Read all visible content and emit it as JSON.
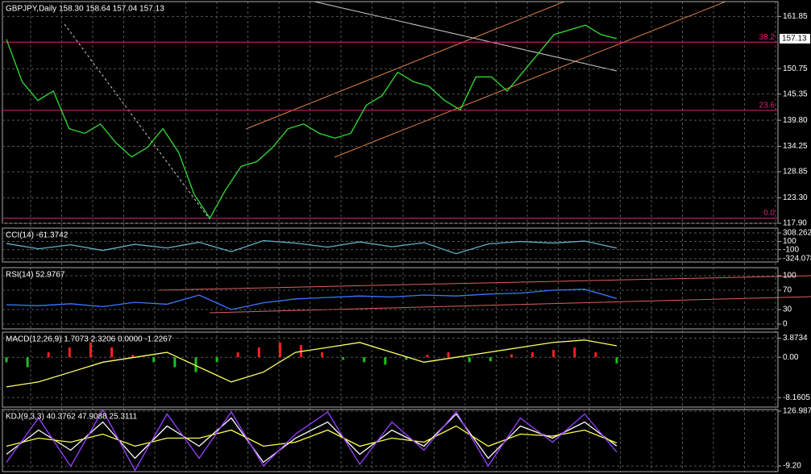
{
  "panels": [
    {
      "label": "GBPJPY,Daily  158.30 158.64 157.04 157.13",
      "ylim": [
        117.9,
        165
      ],
      "yticks": [
        161.85,
        150.75,
        145.35,
        {
          "value": 139.8,
          "label": "139.80"
        },
        134.25,
        128.85,
        {
          "value": 123.3,
          "label": "123.30"
        },
        {
          "value": 117.9,
          "label": "117.90"
        }
      ],
      "current": {
        "value": 157.13,
        "label": "157.13"
      },
      "levels": [
        {
          "value": 156.4,
          "label": "38.2"
        },
        {
          "value": 141.9,
          "label": "23.6"
        },
        {
          "value": 119.0,
          "label": "0.0"
        }
      ],
      "series": [
        {
          "kind": "line",
          "color": "#33dd33",
          "values": [
            157,
            148,
            144,
            146,
            138,
            137,
            139,
            135,
            132,
            134,
            138,
            133,
            124,
            119,
            125,
            130,
            131,
            134,
            138,
            139,
            137,
            136,
            137,
            143,
            145,
            150,
            148,
            147,
            144,
            142,
            149,
            149,
            146,
            150,
            154,
            158,
            159,
            160,
            158,
            157.13
          ]
        }
      ]
    },
    {
      "label": "CCI(14) -61.3742",
      "ylim": [
        -403,
        427
      ],
      "yticks": [
        308.2626,
        100,
        -100,
        -324.078
      ],
      "series": [
        {
          "kind": "line",
          "color": "#5fb0c8",
          "values": [
            50,
            -80,
            20,
            -120,
            30,
            -60,
            80,
            -150,
            120,
            60,
            -40,
            90,
            -30,
            70,
            -200,
            40,
            100,
            60,
            110,
            -61.3742
          ]
        }
      ]
    },
    {
      "label": "RSI(14) 52.9767",
      "ylim": [
        -10,
        116.7
      ],
      "yticks": [
        100,
        70,
        30,
        0
      ],
      "series": [
        {
          "kind": "line",
          "color": "#3a78ff",
          "values": [
            40,
            38,
            42,
            36,
            45,
            41,
            60,
            30,
            44,
            52,
            55,
            58,
            56,
            60,
            58,
            62,
            64,
            70,
            72,
            52.9767
          ]
        }
      ]
    },
    {
      "label": "MACD(12,26,9) 1.7073 2.3206 0.0000 -1.2267",
      "ylim": [
        -10.1,
        5.1
      ],
      "yticks": [
        3.8734,
        {
          "value": 0,
          "label": "0.00"
        },
        -8.1605
      ],
      "series": [
        {
          "kind": "hist",
          "color": "#ff2020",
          "color_negative": "#20c020",
          "values": [
            -1,
            -2,
            1,
            2,
            3,
            2,
            0.5,
            -1,
            -2,
            -3,
            -1,
            1,
            2,
            3,
            2.5,
            1,
            -0.5,
            -1,
            -1.5,
            -0.5,
            0.5,
            1,
            -1,
            -0.8,
            0.6,
            1,
            1.5,
            2,
            1,
            -1.2267
          ]
        },
        {
          "kind": "line",
          "color": "#ffff66",
          "values": [
            -6,
            -5,
            -3,
            -1,
            0,
            1,
            -2,
            -5,
            -3,
            1,
            2,
            3,
            1,
            -1,
            0,
            1,
            2,
            3,
            3.5,
            2.3206
          ]
        }
      ]
    },
    {
      "label": "KDJ(9,3,3) 40.3762 47.9088 25.3111",
      "ylim": [
        -23,
        131
      ],
      "yticks": [
        126.9879,
        {
          "value": -9.2,
          "label": "-9.20"
        }
      ],
      "series": [
        {
          "kind": "line",
          "color": "#ffffff",
          "values": [
            20,
            80,
            30,
            100,
            10,
            90,
            40,
            110,
            0,
            60,
            100,
            20,
            80,
            40,
            120,
            10,
            90,
            60,
            100,
            40.3762
          ]
        },
        {
          "kind": "line",
          "color": "#ffff44",
          "values": [
            40,
            60,
            50,
            70,
            40,
            60,
            60,
            80,
            40,
            50,
            80,
            40,
            60,
            50,
            90,
            40,
            70,
            65,
            80,
            47.9088
          ]
        },
        {
          "kind": "line",
          "color": "#9a40ff",
          "values": [
            0,
            110,
            -10,
            130,
            -20,
            120,
            10,
            125,
            -9,
            70,
            125,
            -5,
            100,
            30,
            126,
            -9,
            110,
            50,
            120,
            25.3111
          ]
        }
      ]
    }
  ]
}
